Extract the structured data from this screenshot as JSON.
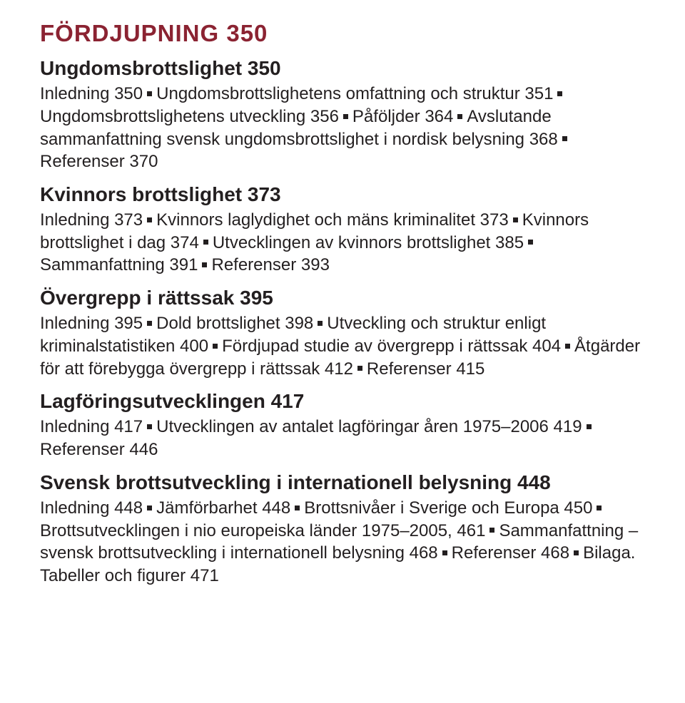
{
  "colors": {
    "title": "#8b2332",
    "text": "#231f20",
    "background": "#ffffff"
  },
  "typography": {
    "title_font": "Arial",
    "title_size_pt": 25,
    "title_weight": 700,
    "heading_font": "Arial",
    "heading_size_pt": 21,
    "heading_weight": 700,
    "body_font": "Arial",
    "body_size_pt": 18,
    "body_weight": 400
  },
  "title": "FÖRDJUPNING 350",
  "sections": [
    {
      "heading": "Ungdomsbrottslighet 350",
      "items": [
        "Inledning 350",
        "Ungdomsbrottslighetens omfattning och struktur 351",
        "Ungdomsbrottslighetens utveckling 356",
        "Påföljder 364",
        "Avslutande sammanfattning svensk ungdomsbrottslighet i nordisk belysning 368",
        "Referenser 370"
      ]
    },
    {
      "heading": "Kvinnors brottslighet 373",
      "items": [
        "Inledning 373",
        "Kvinnors laglydighet och mäns kriminalitet 373",
        "Kvinnors brottslighet i dag 374",
        "Utvecklingen av kvinnors brottslighet 385",
        "Sammanfattning 391",
        "Referenser 393"
      ]
    },
    {
      "heading": "Övergrepp i rättssak 395",
      "items": [
        "Inledning 395",
        "Dold brottslighet 398",
        "Utveckling och struktur enligt kriminalstatistiken 400",
        "Fördjupad studie av övergrepp i rättssak 404",
        "Åtgärder för att förebygga övergrepp i rättssak 412",
        "Referenser 415"
      ]
    },
    {
      "heading": "Lagföringsutvecklingen 417",
      "items": [
        "Inledning 417",
        "Utvecklingen av antalet lagföringar åren 1975–2006 419",
        "Referenser 446"
      ]
    },
    {
      "heading": "Svensk brottsutveckling i internationell belysning 448",
      "items": [
        "Inledning 448",
        "Jämförbarhet 448",
        "Brottsnivåer i Sverige och Europa 450",
        "Brottsutvecklingen i nio europeiska länder 1975–2005, 461",
        "Sammanfattning – svensk brottsutveckling i internationell belysning 468",
        "Referenser 468",
        "Bilaga. Tabeller och figurer 471"
      ]
    }
  ]
}
